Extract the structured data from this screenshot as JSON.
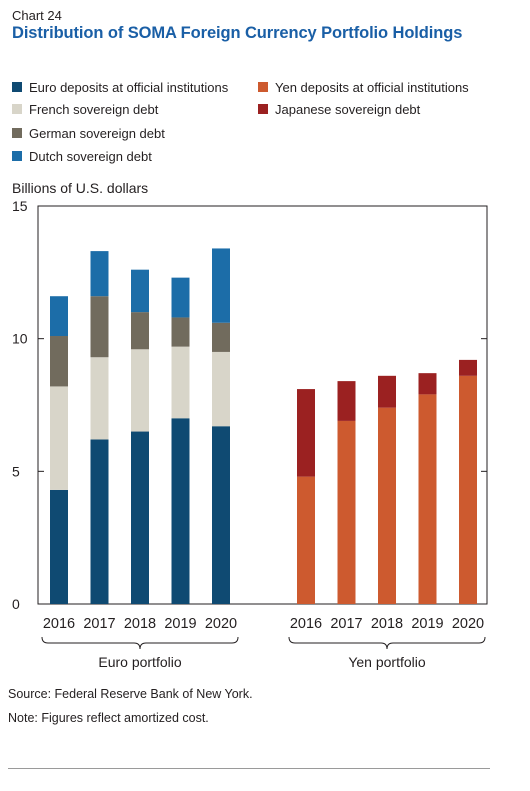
{
  "header": {
    "chart_number": "Chart 24",
    "title": "Distribution of SOMA Foreign Currency Portfolio Holdings"
  },
  "legend": [
    {
      "label": "Euro deposits at official institutions",
      "color": "#0f4a72"
    },
    {
      "label": "Yen deposits at official institutions",
      "color": "#cd5a2f"
    },
    {
      "label": "French sovereign debt",
      "color": "#d8d5c9"
    },
    {
      "label": "Japanese sovereign debt",
      "color": "#9b2121"
    },
    {
      "label": "German sovereign debt",
      "color": "#716b5d"
    },
    {
      "label": "Dutch sovereign debt",
      "color": "#1c6da8"
    }
  ],
  "footer": {
    "source": "Source: Federal Reserve Bank of New York.",
    "note": "Note: Figures reflect amortized cost."
  },
  "chart_data": {
    "type": "bar",
    "stacked": true,
    "ylabel": "Billions of U.S. dollars",
    "ylim": [
      0,
      15
    ],
    "yticks": [
      "0",
      "5",
      "10",
      "15"
    ],
    "groups": [
      {
        "label": "Euro portfolio",
        "categories": [
          "2016",
          "2017",
          "2018",
          "2019",
          "2020"
        ],
        "series": [
          {
            "name": "Euro deposits at official institutions",
            "color": "#0f4a72",
            "values": [
              4.3,
              6.2,
              6.5,
              7.0,
              6.7
            ]
          },
          {
            "name": "French sovereign debt",
            "color": "#d8d5c9",
            "values": [
              3.9,
              3.1,
              3.1,
              2.7,
              2.8
            ]
          },
          {
            "name": "German sovereign debt",
            "color": "#716b5d",
            "values": [
              1.9,
              2.3,
              1.4,
              1.1,
              1.1
            ]
          },
          {
            "name": "Dutch sovereign debt",
            "color": "#1c6da8",
            "values": [
              1.5,
              1.7,
              1.6,
              1.5,
              2.8
            ]
          }
        ]
      },
      {
        "label": "Yen portfolio",
        "categories": [
          "2016",
          "2017",
          "2018",
          "2019",
          "2020"
        ],
        "series": [
          {
            "name": "Yen deposits at official institutions",
            "color": "#cd5a2f",
            "values": [
              4.8,
              6.9,
              7.4,
              7.9,
              8.6
            ]
          },
          {
            "name": "Japanese sovereign debt",
            "color": "#9b2121",
            "values": [
              3.3,
              1.5,
              1.2,
              0.8,
              0.6
            ]
          }
        ]
      }
    ]
  }
}
